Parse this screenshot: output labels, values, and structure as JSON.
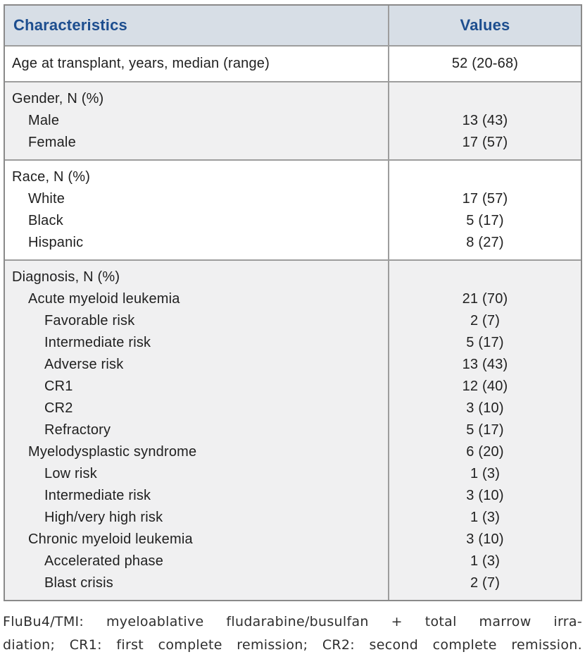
{
  "table": {
    "header": {
      "characteristics": "Characteristics",
      "values": "Values"
    },
    "sections": [
      {
        "shaded": false,
        "single": true,
        "rows": [
          {
            "label": "Age at transplant, years, median (range)",
            "indent": 0,
            "value": "52 (20-68)"
          }
        ]
      },
      {
        "shaded": true,
        "single": false,
        "rows": [
          {
            "label": "Gender, N (%)",
            "indent": 0,
            "value": ""
          },
          {
            "label": "Male",
            "indent": 1,
            "value": "13 (43)"
          },
          {
            "label": "Female",
            "indent": 1,
            "value": "17 (57)"
          }
        ]
      },
      {
        "shaded": false,
        "single": false,
        "rows": [
          {
            "label": "Race, N (%)",
            "indent": 0,
            "value": ""
          },
          {
            "label": "White",
            "indent": 1,
            "value": "17 (57)"
          },
          {
            "label": "Black",
            "indent": 1,
            "value": "5 (17)"
          },
          {
            "label": "Hispanic",
            "indent": 1,
            "value": "8 (27)"
          }
        ]
      },
      {
        "shaded": true,
        "single": false,
        "rows": [
          {
            "label": "Diagnosis, N (%)",
            "indent": 0,
            "value": ""
          },
          {
            "label": "Acute myeloid leukemia",
            "indent": 1,
            "value": "21 (70)"
          },
          {
            "label": "Favorable risk",
            "indent": 2,
            "value": "2 (7)"
          },
          {
            "label": "Intermediate risk",
            "indent": 2,
            "value": "5 (17)"
          },
          {
            "label": "Adverse risk",
            "indent": 2,
            "value": "13 (43)"
          },
          {
            "label": "CR1",
            "indent": 2,
            "value": "12 (40)"
          },
          {
            "label": "CR2",
            "indent": 2,
            "value": "3 (10)"
          },
          {
            "label": "Refractory",
            "indent": 2,
            "value": "5 (17)"
          },
          {
            "label": "Myelodysplastic syndrome",
            "indent": 1,
            "value": "6 (20)"
          },
          {
            "label": "Low risk",
            "indent": 2,
            "value": "1 (3)"
          },
          {
            "label": "Intermediate risk",
            "indent": 2,
            "value": "3 (10)"
          },
          {
            "label": "High/very high risk",
            "indent": 2,
            "value": "1 (3)"
          },
          {
            "label": "Chronic myeloid leukemia",
            "indent": 1,
            "value": "3 (10)"
          },
          {
            "label": "Accelerated phase",
            "indent": 2,
            "value": "1 (3)"
          },
          {
            "label": "Blast crisis",
            "indent": 2,
            "value": "2 (7)"
          }
        ]
      }
    ]
  },
  "footnote": {
    "line1": "FluBu4/TMI: myeloablative fludarabine/busulfan + total marrow irra-",
    "line2": "diation; CR1: first complete remission; CR2: second complete remission."
  },
  "colors": {
    "header_text": "#1d4e8f",
    "header_bg": "#d7dee6",
    "shaded_bg": "#f0f0f1",
    "border": "#9d9d9d",
    "outer_border": "#8a8a8a",
    "text": "#1f1f1f",
    "footnote_text": "#2e2e2e"
  }
}
